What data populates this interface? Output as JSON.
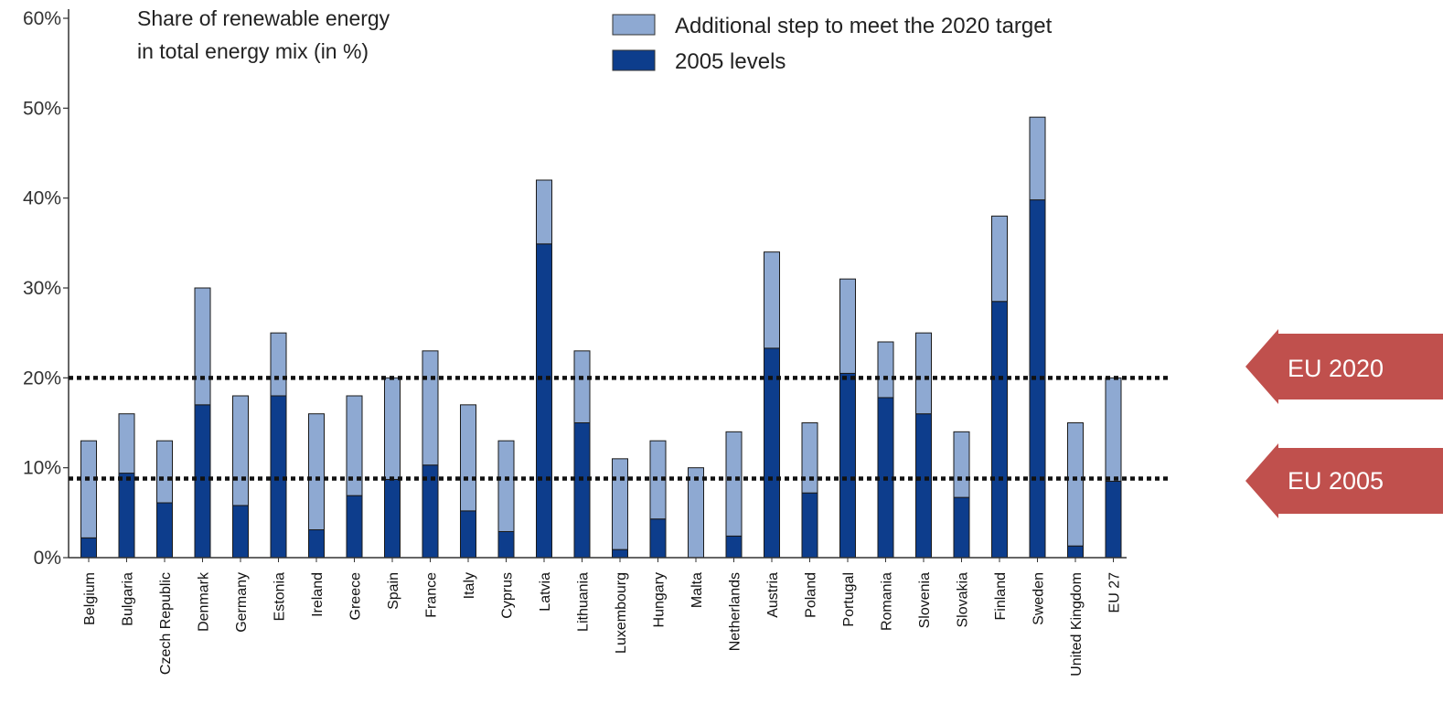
{
  "chart_data": {
    "type": "bar",
    "stacked": true,
    "title_lines": [
      "Share of renewable energy",
      "in total energy mix (in %)"
    ],
    "ylim": [
      0,
      60
    ],
    "yticks": [
      "0%",
      "10%",
      "20%",
      "30%",
      "40%",
      "50%",
      "60%"
    ],
    "categories": [
      "Belgium",
      "Bulgaria",
      "Czech Republic",
      "Denmark",
      "Germany",
      "Estonia",
      "Ireland",
      "Greece",
      "Spain",
      "France",
      "Italy",
      "Cyprus",
      "Latvia",
      "Lithuania",
      "Luxembourg",
      "Hungary",
      "Malta",
      "Netherlands",
      "Austria",
      "Poland",
      "Portugal",
      "Romania",
      "Slovenia",
      "Slovakia",
      "Finland",
      "Sweden",
      "United Kingdom",
      "EU 27"
    ],
    "series": [
      {
        "name": "2005 levels",
        "color": "#0d3d8c",
        "values": [
          2.2,
          9.4,
          6.1,
          17.0,
          5.8,
          18.0,
          3.1,
          6.9,
          8.7,
          10.3,
          5.2,
          2.9,
          34.9,
          15.0,
          0.9,
          4.3,
          0.0,
          2.4,
          23.3,
          7.2,
          20.5,
          17.8,
          16.0,
          6.7,
          28.5,
          39.8,
          1.3,
          8.5
        ]
      },
      {
        "name": "Additional step to meet the 2020 target",
        "color": "#8ea9d2",
        "values": [
          10.8,
          6.6,
          6.9,
          13.0,
          12.2,
          7.0,
          12.9,
          11.1,
          11.3,
          12.7,
          11.8,
          10.1,
          7.1,
          8.0,
          10.1,
          8.7,
          10.0,
          11.6,
          10.7,
          7.8,
          10.5,
          6.2,
          9.0,
          7.3,
          9.5,
          9.2,
          13.7,
          11.5
        ]
      }
    ],
    "legend": {
      "placement": "top",
      "entries": [
        "Additional step to meet the 2020 target",
        "2005 levels"
      ]
    },
    "reference_lines": [
      {
        "label": "EU 2020",
        "value": 20,
        "style": "dotted"
      },
      {
        "label": "EU 2005",
        "value": 8.8,
        "style": "dotted"
      }
    ],
    "annotation_color": "#c0504d"
  }
}
